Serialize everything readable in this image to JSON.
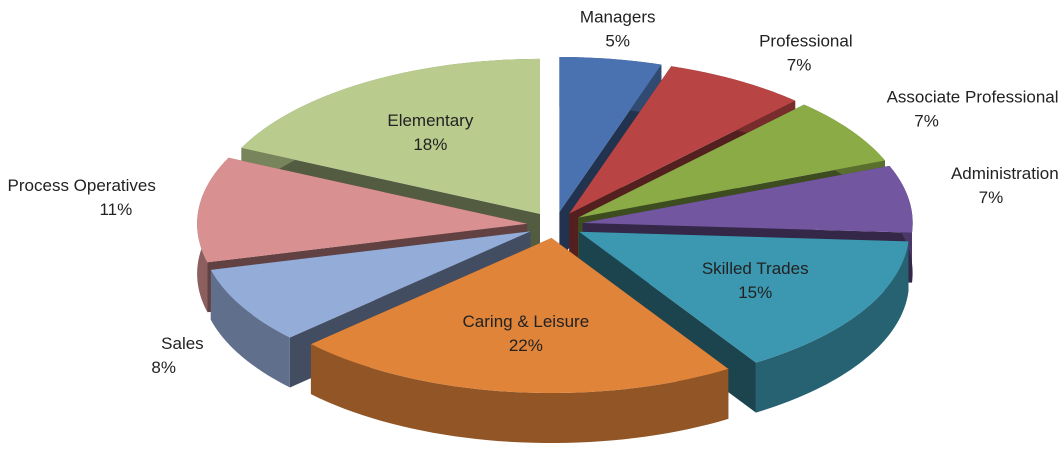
{
  "chart_data": {
    "type": "pie",
    "categories": [
      "Managers",
      "Professional",
      "Associate Professional",
      "Administration",
      "Skilled Trades",
      "Caring & Leisure",
      "Sales",
      "Process Operatives",
      "Elementary"
    ],
    "values": [
      5,
      7,
      7,
      7,
      15,
      22,
      8,
      11,
      18
    ],
    "value_labels": [
      "5%",
      "7%",
      "7%",
      "7%",
      "15%",
      "22%",
      "8%",
      "11%",
      "18%"
    ],
    "colors": [
      "#4a72b0",
      "#b84444",
      "#8aab45",
      "#7356a0",
      "#3c97b0",
      "#e0843a",
      "#94acd8",
      "#d89090",
      "#b9cc8e"
    ]
  }
}
